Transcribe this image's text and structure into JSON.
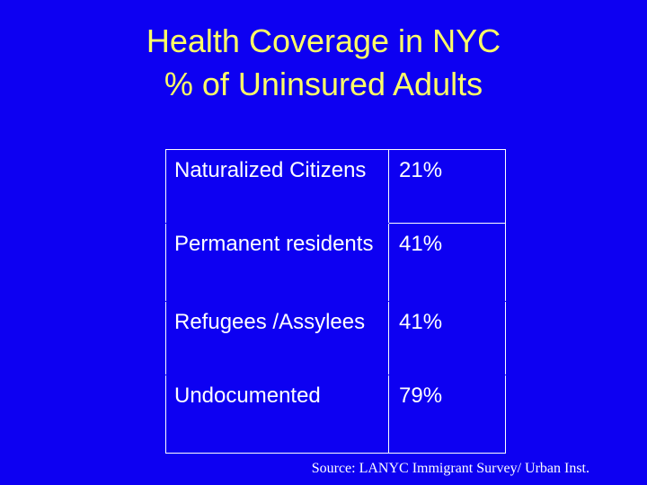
{
  "slide": {
    "background_color": "#0d00f2",
    "title_color": "#ffff66",
    "title_line_1": "Health Coverage in NYC",
    "title_line_2": "% of Uninsured Adults"
  },
  "table": {
    "rows": [
      {
        "category": "Naturalized Citizens",
        "value": "21%"
      },
      {
        "category": "Permanent residents",
        "value": "41%"
      },
      {
        "category": "Refugees /Assylees",
        "value": "41%"
      },
      {
        "category": "Undocumented",
        "value": "79%"
      }
    ]
  },
  "source": "Source: LANYC Immigrant Survey/ Urban Inst."
}
